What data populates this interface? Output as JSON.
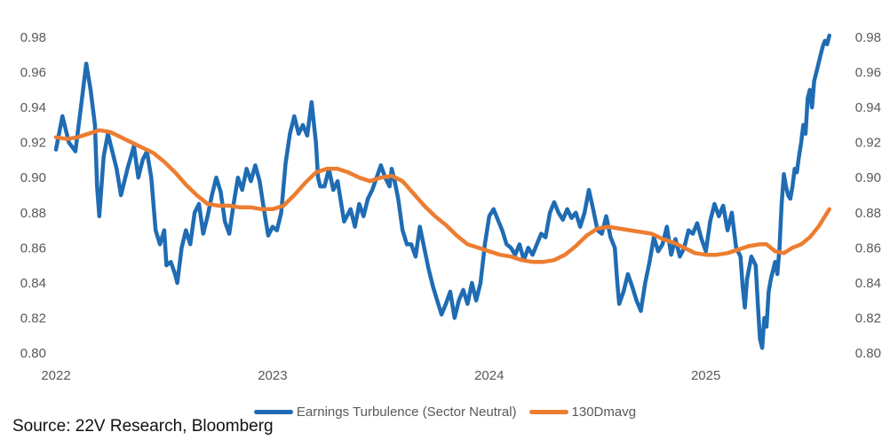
{
  "chart_data": {
    "type": "line",
    "title": "",
    "xlabel": "",
    "ylabel": "",
    "x_start": 2022.0,
    "x_end": 2025.57,
    "xlim": [
      2022.0,
      2025.6
    ],
    "ylim": [
      0.8,
      0.98
    ],
    "y_ticks": [
      "0.80",
      "0.82",
      "0.84",
      "0.86",
      "0.88",
      "0.90",
      "0.92",
      "0.94",
      "0.96",
      "0.98"
    ],
    "x_ticks": [
      {
        "label": "2022",
        "value": 2022
      },
      {
        "label": "2023",
        "value": 2023
      },
      {
        "label": "2024",
        "value": 2024
      },
      {
        "label": "2025",
        "value": 2025
      }
    ],
    "grid": false,
    "legend_position": "bottom",
    "series": [
      {
        "name": "Earnings Turbulence (Sector Neutral)",
        "color": "#1F6CB4",
        "points": [
          [
            2022.0,
            0.916
          ],
          [
            2022.03,
            0.935
          ],
          [
            2022.06,
            0.92
          ],
          [
            2022.09,
            0.915
          ],
          [
            2022.12,
            0.945
          ],
          [
            2022.13,
            0.955
          ],
          [
            2022.14,
            0.965
          ],
          [
            2022.16,
            0.95
          ],
          [
            2022.18,
            0.93
          ],
          [
            2022.19,
            0.895
          ],
          [
            2022.2,
            0.878
          ],
          [
            2022.22,
            0.912
          ],
          [
            2022.24,
            0.925
          ],
          [
            2022.26,
            0.915
          ],
          [
            2022.28,
            0.905
          ],
          [
            2022.3,
            0.89
          ],
          [
            2022.33,
            0.905
          ],
          [
            2022.36,
            0.918
          ],
          [
            2022.38,
            0.9
          ],
          [
            2022.4,
            0.91
          ],
          [
            2022.42,
            0.915
          ],
          [
            2022.44,
            0.9
          ],
          [
            2022.46,
            0.87
          ],
          [
            2022.48,
            0.862
          ],
          [
            2022.5,
            0.87
          ],
          [
            2022.51,
            0.85
          ],
          [
            2022.53,
            0.852
          ],
          [
            2022.55,
            0.845
          ],
          [
            2022.56,
            0.84
          ],
          [
            2022.58,
            0.86
          ],
          [
            2022.6,
            0.87
          ],
          [
            2022.62,
            0.862
          ],
          [
            2022.64,
            0.88
          ],
          [
            2022.66,
            0.885
          ],
          [
            2022.68,
            0.868
          ],
          [
            2022.7,
            0.878
          ],
          [
            2022.72,
            0.89
          ],
          [
            2022.74,
            0.9
          ],
          [
            2022.76,
            0.892
          ],
          [
            2022.78,
            0.875
          ],
          [
            2022.8,
            0.868
          ],
          [
            2022.82,
            0.885
          ],
          [
            2022.84,
            0.9
          ],
          [
            2022.86,
            0.893
          ],
          [
            2022.88,
            0.905
          ],
          [
            2022.9,
            0.898
          ],
          [
            2022.92,
            0.907
          ],
          [
            2022.94,
            0.898
          ],
          [
            2022.96,
            0.882
          ],
          [
            2022.98,
            0.867
          ],
          [
            2023.0,
            0.872
          ],
          [
            2023.02,
            0.87
          ],
          [
            2023.04,
            0.88
          ],
          [
            2023.06,
            0.908
          ],
          [
            2023.08,
            0.925
          ],
          [
            2023.1,
            0.935
          ],
          [
            2023.12,
            0.925
          ],
          [
            2023.14,
            0.93
          ],
          [
            2023.16,
            0.924
          ],
          [
            2023.18,
            0.943
          ],
          [
            2023.2,
            0.92
          ],
          [
            2023.21,
            0.9
          ],
          [
            2023.22,
            0.895
          ],
          [
            2023.24,
            0.895
          ],
          [
            2023.26,
            0.905
          ],
          [
            2023.28,
            0.893
          ],
          [
            2023.3,
            0.898
          ],
          [
            2023.33,
            0.875
          ],
          [
            2023.36,
            0.882
          ],
          [
            2023.38,
            0.872
          ],
          [
            2023.4,
            0.885
          ],
          [
            2023.42,
            0.878
          ],
          [
            2023.44,
            0.888
          ],
          [
            2023.46,
            0.893
          ],
          [
            2023.48,
            0.9
          ],
          [
            2023.5,
            0.907
          ],
          [
            2023.52,
            0.9
          ],
          [
            2023.54,
            0.895
          ],
          [
            2023.55,
            0.905
          ],
          [
            2023.56,
            0.9
          ],
          [
            2023.58,
            0.888
          ],
          [
            2023.6,
            0.87
          ],
          [
            2023.62,
            0.862
          ],
          [
            2023.64,
            0.862
          ],
          [
            2023.66,
            0.855
          ],
          [
            2023.68,
            0.872
          ],
          [
            2023.7,
            0.86
          ],
          [
            2023.72,
            0.848
          ],
          [
            2023.74,
            0.838
          ],
          [
            2023.76,
            0.83
          ],
          [
            2023.78,
            0.822
          ],
          [
            2023.8,
            0.828
          ],
          [
            2023.82,
            0.835
          ],
          [
            2023.84,
            0.82
          ],
          [
            2023.86,
            0.83
          ],
          [
            2023.88,
            0.836
          ],
          [
            2023.9,
            0.828
          ],
          [
            2023.92,
            0.84
          ],
          [
            2023.94,
            0.83
          ],
          [
            2023.96,
            0.84
          ],
          [
            2023.98,
            0.862
          ],
          [
            2024.0,
            0.878
          ],
          [
            2024.02,
            0.882
          ],
          [
            2024.04,
            0.876
          ],
          [
            2024.06,
            0.87
          ],
          [
            2024.08,
            0.862
          ],
          [
            2024.1,
            0.86
          ],
          [
            2024.12,
            0.856
          ],
          [
            2024.14,
            0.862
          ],
          [
            2024.16,
            0.853
          ],
          [
            2024.18,
            0.86
          ],
          [
            2024.2,
            0.856
          ],
          [
            2024.22,
            0.862
          ],
          [
            2024.24,
            0.868
          ],
          [
            2024.26,
            0.866
          ],
          [
            2024.28,
            0.88
          ],
          [
            2024.3,
            0.886
          ],
          [
            2024.32,
            0.88
          ],
          [
            2024.34,
            0.876
          ],
          [
            2024.36,
            0.882
          ],
          [
            2024.38,
            0.877
          ],
          [
            2024.4,
            0.88
          ],
          [
            2024.42,
            0.872
          ],
          [
            2024.44,
            0.88
          ],
          [
            2024.46,
            0.893
          ],
          [
            2024.48,
            0.882
          ],
          [
            2024.5,
            0.87
          ],
          [
            2024.52,
            0.868
          ],
          [
            2024.54,
            0.878
          ],
          [
            2024.56,
            0.866
          ],
          [
            2024.58,
            0.86
          ],
          [
            2024.59,
            0.842
          ],
          [
            2024.6,
            0.828
          ],
          [
            2024.62,
            0.835
          ],
          [
            2024.64,
            0.845
          ],
          [
            2024.66,
            0.838
          ],
          [
            2024.68,
            0.83
          ],
          [
            2024.7,
            0.824
          ],
          [
            2024.72,
            0.84
          ],
          [
            2024.74,
            0.852
          ],
          [
            2024.76,
            0.866
          ],
          [
            2024.78,
            0.858
          ],
          [
            2024.8,
            0.862
          ],
          [
            2024.82,
            0.872
          ],
          [
            2024.84,
            0.856
          ],
          [
            2024.86,
            0.865
          ],
          [
            2024.88,
            0.855
          ],
          [
            2024.9,
            0.86
          ],
          [
            2024.92,
            0.87
          ],
          [
            2024.94,
            0.868
          ],
          [
            2024.96,
            0.874
          ],
          [
            2024.98,
            0.865
          ],
          [
            2025.0,
            0.858
          ],
          [
            2025.02,
            0.875
          ],
          [
            2025.04,
            0.885
          ],
          [
            2025.06,
            0.878
          ],
          [
            2025.08,
            0.884
          ],
          [
            2025.1,
            0.87
          ],
          [
            2025.12,
            0.88
          ],
          [
            2025.14,
            0.86
          ],
          [
            2025.16,
            0.855
          ],
          [
            2025.17,
            0.838
          ],
          [
            2025.18,
            0.826
          ],
          [
            2025.19,
            0.842
          ],
          [
            2025.21,
            0.855
          ],
          [
            2025.23,
            0.85
          ],
          [
            2025.24,
            0.828
          ],
          [
            2025.25,
            0.808
          ],
          [
            2025.26,
            0.803
          ],
          [
            2025.27,
            0.82
          ],
          [
            2025.28,
            0.815
          ],
          [
            2025.29,
            0.835
          ],
          [
            2025.3,
            0.842
          ],
          [
            2025.32,
            0.852
          ],
          [
            2025.33,
            0.845
          ],
          [
            2025.34,
            0.86
          ],
          [
            2025.35,
            0.885
          ],
          [
            2025.36,
            0.902
          ],
          [
            2025.37,
            0.895
          ],
          [
            2025.38,
            0.89
          ],
          [
            2025.39,
            0.888
          ],
          [
            2025.4,
            0.895
          ],
          [
            2025.41,
            0.905
          ],
          [
            2025.42,
            0.903
          ],
          [
            2025.43,
            0.912
          ],
          [
            2025.44,
            0.92
          ],
          [
            2025.45,
            0.93
          ],
          [
            2025.46,
            0.925
          ],
          [
            2025.47,
            0.945
          ],
          [
            2025.48,
            0.95
          ],
          [
            2025.49,
            0.94
          ],
          [
            2025.5,
            0.955
          ],
          [
            2025.51,
            0.96
          ],
          [
            2025.52,
            0.965
          ],
          [
            2025.53,
            0.97
          ],
          [
            2025.54,
            0.975
          ],
          [
            2025.55,
            0.978
          ],
          [
            2025.56,
            0.976
          ],
          [
            2025.57,
            0.981
          ]
        ]
      },
      {
        "name": "130Dmavg",
        "color": "#ED7D31",
        "points": [
          [
            2022.0,
            0.923
          ],
          [
            2022.05,
            0.922
          ],
          [
            2022.1,
            0.923
          ],
          [
            2022.15,
            0.925
          ],
          [
            2022.2,
            0.927
          ],
          [
            2022.25,
            0.926
          ],
          [
            2022.3,
            0.923
          ],
          [
            2022.35,
            0.92
          ],
          [
            2022.4,
            0.917
          ],
          [
            2022.45,
            0.914
          ],
          [
            2022.5,
            0.909
          ],
          [
            2022.55,
            0.903
          ],
          [
            2022.6,
            0.896
          ],
          [
            2022.65,
            0.89
          ],
          [
            2022.7,
            0.885
          ],
          [
            2022.75,
            0.884
          ],
          [
            2022.8,
            0.884
          ],
          [
            2022.85,
            0.883
          ],
          [
            2022.9,
            0.883
          ],
          [
            2022.95,
            0.882
          ],
          [
            2023.0,
            0.882
          ],
          [
            2023.05,
            0.884
          ],
          [
            2023.1,
            0.89
          ],
          [
            2023.15,
            0.897
          ],
          [
            2023.2,
            0.903
          ],
          [
            2023.25,
            0.905
          ],
          [
            2023.3,
            0.905
          ],
          [
            2023.35,
            0.903
          ],
          [
            2023.4,
            0.9
          ],
          [
            2023.45,
            0.898
          ],
          [
            2023.5,
            0.9
          ],
          [
            2023.55,
            0.901
          ],
          [
            2023.6,
            0.898
          ],
          [
            2023.65,
            0.891
          ],
          [
            2023.7,
            0.884
          ],
          [
            2023.75,
            0.878
          ],
          [
            2023.8,
            0.873
          ],
          [
            2023.85,
            0.867
          ],
          [
            2023.9,
            0.862
          ],
          [
            2023.95,
            0.86
          ],
          [
            2024.0,
            0.858
          ],
          [
            2024.05,
            0.856
          ],
          [
            2024.1,
            0.855
          ],
          [
            2024.15,
            0.853
          ],
          [
            2024.2,
            0.852
          ],
          [
            2024.25,
            0.852
          ],
          [
            2024.3,
            0.853
          ],
          [
            2024.35,
            0.856
          ],
          [
            2024.4,
            0.861
          ],
          [
            2024.45,
            0.867
          ],
          [
            2024.5,
            0.871
          ],
          [
            2024.55,
            0.872
          ],
          [
            2024.6,
            0.871
          ],
          [
            2024.65,
            0.87
          ],
          [
            2024.7,
            0.869
          ],
          [
            2024.75,
            0.868
          ],
          [
            2024.8,
            0.865
          ],
          [
            2024.85,
            0.863
          ],
          [
            2024.9,
            0.86
          ],
          [
            2024.95,
            0.857
          ],
          [
            2025.0,
            0.856
          ],
          [
            2025.05,
            0.856
          ],
          [
            2025.1,
            0.857
          ],
          [
            2025.15,
            0.859
          ],
          [
            2025.2,
            0.861
          ],
          [
            2025.25,
            0.862
          ],
          [
            2025.28,
            0.862
          ],
          [
            2025.32,
            0.858
          ],
          [
            2025.36,
            0.857
          ],
          [
            2025.4,
            0.86
          ],
          [
            2025.44,
            0.862
          ],
          [
            2025.48,
            0.866
          ],
          [
            2025.52,
            0.872
          ],
          [
            2025.55,
            0.878
          ],
          [
            2025.57,
            0.882
          ]
        ]
      }
    ]
  },
  "legend": {
    "series1_label": "Earnings Turbulence (Sector Neutral)",
    "series2_label": "130Dmavg"
  },
  "source_text": "Source: 22V Research, Bloomberg"
}
